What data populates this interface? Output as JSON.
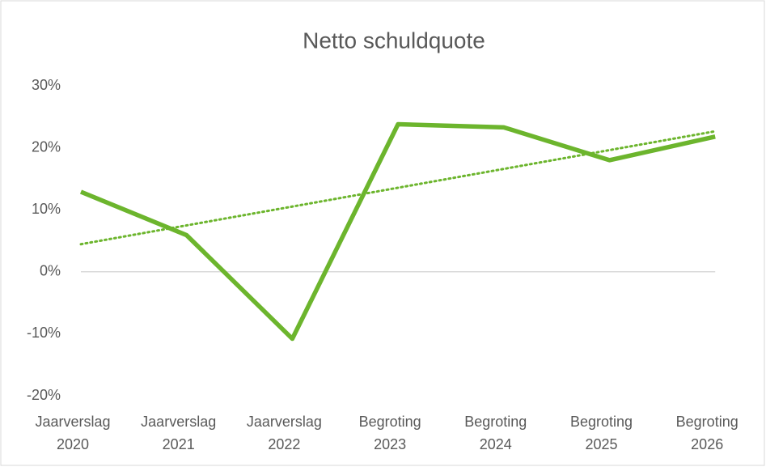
{
  "chart_data": {
    "type": "line",
    "title": "Netto schuldquote",
    "categories": [
      [
        "Jaarverslag",
        "2020"
      ],
      [
        "Jaarverslag",
        "2021"
      ],
      [
        "Jaarverslag",
        "2022"
      ],
      [
        "Begroting",
        "2023"
      ],
      [
        "Begroting",
        "2024"
      ],
      [
        "Begroting",
        "2025"
      ],
      [
        "Begroting",
        "2026"
      ]
    ],
    "series": [
      {
        "name": "Netto schuldquote",
        "color": "#6cb52d",
        "values": [
          12.9,
          5.9,
          -10.8,
          23.8,
          23.3,
          18.0,
          21.8
        ]
      }
    ],
    "trendline": "linear",
    "ylim": [
      -20,
      30
    ],
    "yticks": [
      {
        "value": -20,
        "label": "-20%"
      },
      {
        "value": -10,
        "label": "-10%"
      },
      {
        "value": 0,
        "label": "0%"
      },
      {
        "value": 10,
        "label": "10%"
      },
      {
        "value": 20,
        "label": "20%"
      },
      {
        "value": 30,
        "label": "30%"
      }
    ],
    "grid": false
  }
}
